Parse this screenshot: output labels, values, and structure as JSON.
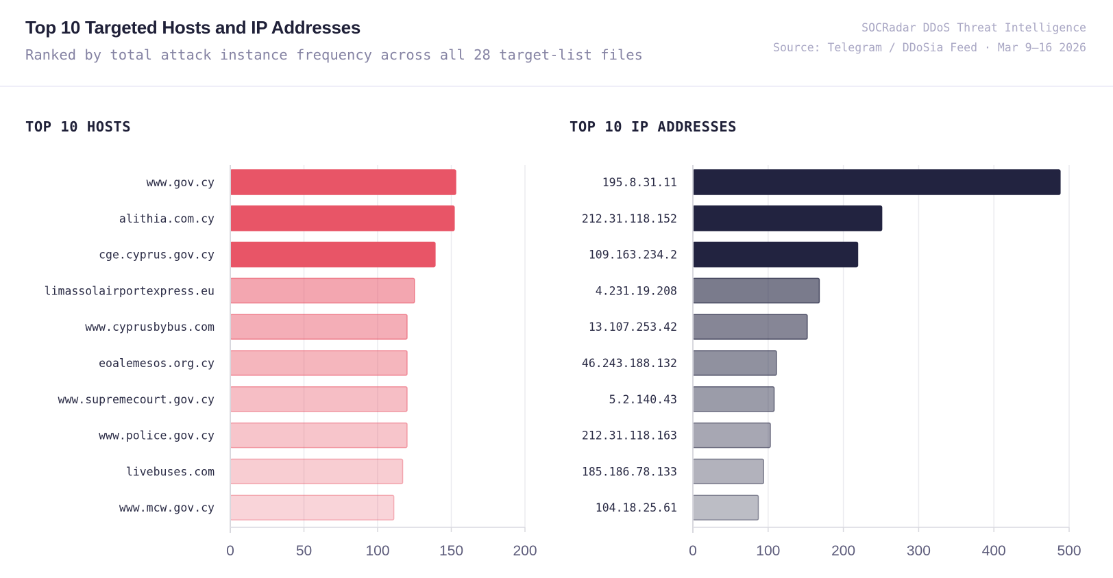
{
  "header": {
    "title": "Top 10 Targeted Hosts and IP Addresses",
    "subtitle": "Ranked by total attack instance frequency across all 28 target-list files",
    "meta_line1": "SOCRadar DDoS Threat Intelligence",
    "meta_line2": "Source: Telegram / DDoSia Feed · Mar 9–16 2026"
  },
  "chart_data": [
    {
      "type": "bar",
      "orientation": "horizontal",
      "title": "TOP 10 HOSTS",
      "categories": [
        "www.gov.cy",
        "alithia.com.cy",
        "cge.cyprus.gov.cy",
        "limassolairportexpress.eu",
        "www.cyprusbybus.com",
        "eoalemesos.org.cy",
        "www.supremecourt.gov.cy",
        "www.police.gov.cy",
        "livebuses.com",
        "www.mcw.gov.cy"
      ],
      "values": [
        153,
        152,
        139,
        125,
        120,
        120,
        120,
        120,
        117,
        111
      ],
      "xlim": [
        0,
        200
      ],
      "ticks": [
        "0",
        "50",
        "100",
        "150",
        "200"
      ],
      "grid": true,
      "color": "#e85567"
    },
    {
      "type": "bar",
      "orientation": "horizontal",
      "title": "TOP 10 IP ADDRESSES",
      "categories": [
        "195.8.31.11",
        "212.31.118.152",
        "109.163.234.2",
        "4.231.19.208",
        "13.107.253.42",
        "46.243.188.132",
        "5.2.140.43",
        "212.31.118.163",
        "185.186.78.133",
        "104.18.25.61"
      ],
      "values": [
        488,
        251,
        219,
        168,
        152,
        111,
        108,
        103,
        94,
        87
      ],
      "xlim": [
        0,
        500
      ],
      "ticks": [
        "0",
        "100",
        "200",
        "300",
        "400",
        "500"
      ],
      "grid": true,
      "color": "#222340"
    }
  ]
}
